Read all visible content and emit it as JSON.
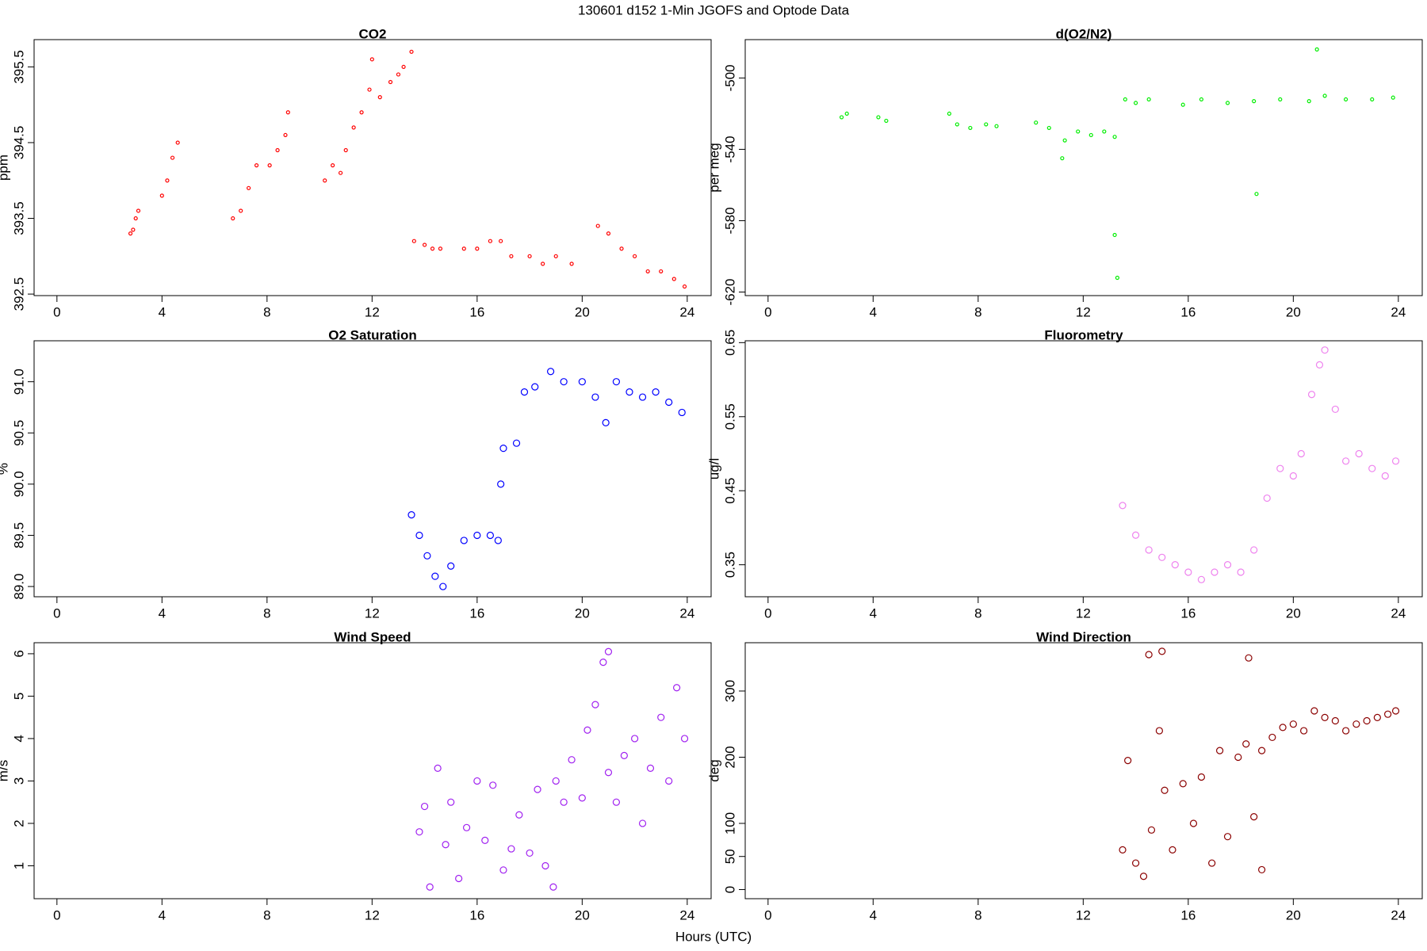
{
  "title": "130601   d152   1-Min  JGOFS and Optode Data",
  "xlabel": "Hours (UTC)",
  "chart_data": [
    {
      "type": "scatter",
      "title": "CO2",
      "ylabel": "ppm",
      "color": "#ff0000",
      "point_size": 2,
      "xlim": [
        -0.87,
        24.91
      ],
      "xticks": [
        0,
        4,
        8,
        12,
        16,
        20,
        24
      ],
      "ylim": [
        392.48,
        395.86
      ],
      "yticks": [
        392.5,
        393.5,
        394.5,
        395.5
      ],
      "x": [
        2.8,
        2.9,
        3.0,
        3.1,
        4.0,
        4.2,
        4.4,
        4.6,
        6.7,
        7.0,
        7.3,
        7.6,
        8.1,
        8.4,
        8.7,
        8.8,
        10.2,
        10.5,
        10.8,
        11.0,
        11.3,
        11.6,
        11.9,
        12.0,
        12.3,
        12.7,
        13.0,
        13.2,
        13.5,
        13.6,
        14.0,
        14.3,
        14.6,
        15.5,
        16.0,
        16.5,
        16.9,
        17.3,
        18.0,
        18.5,
        19.0,
        19.6,
        20.6,
        21.0,
        21.5,
        22.0,
        22.5,
        23.0,
        23.5,
        23.9
      ],
      "values": [
        393.3,
        393.35,
        393.5,
        393.6,
        393.8,
        394.0,
        394.3,
        394.5,
        393.5,
        393.6,
        393.9,
        394.2,
        394.2,
        394.4,
        394.6,
        394.9,
        394.0,
        394.2,
        394.1,
        394.4,
        394.7,
        394.9,
        395.2,
        395.6,
        395.1,
        395.3,
        395.4,
        395.5,
        395.7,
        393.2,
        393.15,
        393.1,
        393.1,
        393.1,
        393.1,
        393.2,
        393.2,
        393.0,
        393.0,
        392.9,
        393.0,
        392.9,
        393.4,
        393.3,
        393.1,
        393.0,
        392.8,
        392.8,
        392.7,
        392.6
      ]
    },
    {
      "type": "scatter",
      "title": "d(O2/N2)",
      "ylabel": "per meg",
      "color": "#00ee00",
      "point_size": 2,
      "xlim": [
        -0.87,
        24.91
      ],
      "xticks": [
        0,
        4,
        8,
        12,
        16,
        20,
        24
      ],
      "ylim": [
        -622,
        -478.5
      ],
      "yticks": [
        -620,
        -580,
        -540,
        -500
      ],
      "x": [
        2.8,
        3.0,
        4.2,
        4.5,
        6.9,
        7.2,
        7.7,
        8.3,
        8.7,
        10.2,
        10.7,
        11.2,
        11.3,
        11.8,
        12.3,
        12.8,
        13.2,
        13.2,
        13.3,
        13.6,
        14.0,
        14.5,
        15.8,
        16.5,
        17.5,
        18.5,
        18.6,
        19.5,
        20.6,
        20.9,
        21.2,
        22.0,
        23.0,
        23.8
      ],
      "values": [
        -522,
        -520,
        -522,
        -524,
        -520,
        -526,
        -528,
        -526,
        -527,
        -525,
        -528,
        -545,
        -535,
        -530,
        -532,
        -530,
        -533,
        -588,
        -612,
        -512,
        -514,
        -512,
        -515,
        -512,
        -514,
        -513,
        -565,
        -512,
        -513,
        -484,
        -510,
        -512,
        -512,
        -511
      ]
    },
    {
      "type": "scatter",
      "title": "O2 Saturation",
      "ylabel": "%",
      "color": "#0000ff",
      "point_size": 4,
      "xlim": [
        -0.87,
        24.91
      ],
      "xticks": [
        0,
        4,
        8,
        12,
        16,
        20,
        24
      ],
      "ylim": [
        88.9,
        91.4
      ],
      "yticks": [
        {
          "value": 89,
          "label": "89.0"
        },
        89.5,
        {
          "value": 90,
          "label": "90.0"
        },
        90.5,
        {
          "value": 91,
          "label": "91.0"
        }
      ],
      "x": [
        13.5,
        13.8,
        14.1,
        14.4,
        14.7,
        15.0,
        15.5,
        16.0,
        16.5,
        16.8,
        16.9,
        17.0,
        17.5,
        17.8,
        18.2,
        18.8,
        19.3,
        20.0,
        20.5,
        20.9,
        21.3,
        21.8,
        22.3,
        22.8,
        23.3,
        23.8
      ],
      "values": [
        89.7,
        89.5,
        89.3,
        89.1,
        89.0,
        89.2,
        89.45,
        89.5,
        89.5,
        89.45,
        90.0,
        90.35,
        90.4,
        90.9,
        90.95,
        91.1,
        91.0,
        91.0,
        90.85,
        90.6,
        91.0,
        90.9,
        90.85,
        90.9,
        90.8,
        90.7
      ]
    },
    {
      "type": "scatter",
      "title": "Fluorometry",
      "ylabel": "ug/l",
      "color": "#ee82ee",
      "point_size": 4,
      "xlim": [
        -0.87,
        24.91
      ],
      "xticks": [
        0,
        4,
        8,
        12,
        16,
        20,
        24
      ],
      "ylim": [
        0.3068,
        0.6525
      ],
      "yticks": [
        0.35,
        0.45,
        0.55,
        0.65
      ],
      "x": [
        13.5,
        14.0,
        14.5,
        15.0,
        15.5,
        16.0,
        16.5,
        17.0,
        17.5,
        18.0,
        18.5,
        19.0,
        19.5,
        20.0,
        20.3,
        20.7,
        21.0,
        21.2,
        21.6,
        22.0,
        22.5,
        23.0,
        23.5,
        23.9
      ],
      "values": [
        0.43,
        0.39,
        0.37,
        0.36,
        0.35,
        0.34,
        0.33,
        0.34,
        0.35,
        0.34,
        0.37,
        0.44,
        0.48,
        0.47,
        0.5,
        0.58,
        0.62,
        0.64,
        0.56,
        0.49,
        0.5,
        0.48,
        0.47,
        0.49
      ]
    },
    {
      "type": "scatter",
      "title": "Wind Speed",
      "ylabel": "m/s",
      "color": "#a020f0",
      "point_size": 4,
      "xlim": [
        -0.87,
        24.91
      ],
      "xticks": [
        0,
        4,
        8,
        12,
        16,
        20,
        24
      ],
      "ylim": [
        0.224,
        6.26
      ],
      "yticks": [
        1,
        2,
        3,
        4,
        5,
        6
      ],
      "x": [
        13.8,
        14.0,
        14.2,
        14.5,
        14.8,
        15.0,
        15.3,
        15.6,
        16.0,
        16.3,
        16.6,
        17.0,
        17.3,
        17.6,
        18.0,
        18.3,
        18.6,
        18.9,
        19.0,
        19.3,
        19.6,
        20.0,
        20.2,
        20.5,
        20.8,
        21.0,
        21.0,
        21.3,
        21.6,
        22.0,
        22.3,
        22.6,
        23.0,
        23.3,
        23.6,
        23.9
      ],
      "values": [
        1.8,
        2.4,
        0.5,
        3.3,
        1.5,
        2.5,
        0.7,
        1.9,
        3.0,
        1.6,
        2.9,
        0.9,
        1.4,
        2.2,
        1.3,
        2.8,
        1.0,
        0.5,
        3.0,
        2.5,
        3.5,
        2.6,
        4.2,
        4.8,
        5.8,
        3.2,
        6.05,
        2.5,
        3.6,
        4.0,
        2.0,
        3.3,
        4.5,
        3.0,
        5.2,
        4.0
      ]
    },
    {
      "type": "scatter",
      "title": "Wind Direction",
      "ylabel": "deg",
      "color": "#8b0000",
      "point_size": 4,
      "xlim": [
        -0.87,
        24.91
      ],
      "xticks": [
        0,
        4,
        8,
        12,
        16,
        20,
        24
      ],
      "ylim": [
        -13.8,
        373
      ],
      "yticks": [
        0,
        50,
        100,
        200,
        300
      ],
      "x": [
        13.5,
        13.7,
        14.0,
        14.3,
        14.5,
        14.6,
        14.9,
        15.0,
        15.1,
        15.4,
        15.8,
        16.2,
        16.5,
        16.9,
        17.2,
        17.5,
        17.9,
        18.2,
        18.3,
        18.5,
        18.8,
        18.8,
        19.2,
        19.6,
        20.0,
        20.4,
        20.8,
        21.2,
        21.6,
        22.0,
        22.4,
        22.8,
        23.2,
        23.6,
        23.9
      ],
      "values": [
        60,
        195,
        40,
        20,
        355,
        90,
        240,
        360,
        150,
        60,
        160,
        100,
        170,
        40,
        210,
        80,
        200,
        220,
        350,
        110,
        210,
        30,
        230,
        245,
        250,
        240,
        270,
        260,
        255,
        240,
        250,
        255,
        260,
        265,
        270
      ]
    }
  ]
}
